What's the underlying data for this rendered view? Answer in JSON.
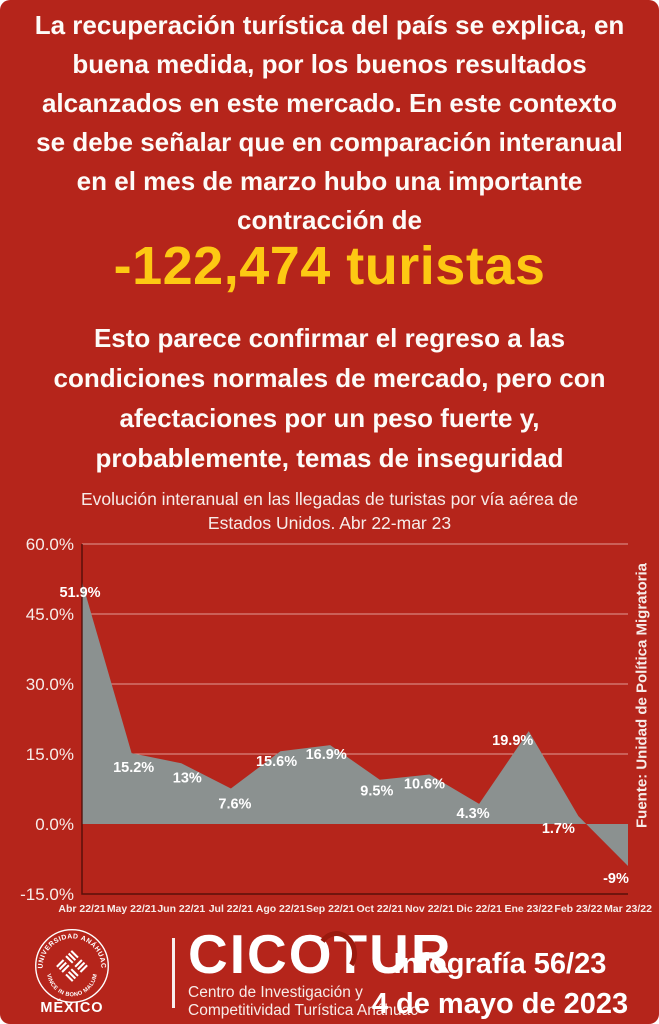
{
  "colors": {
    "background": "#b5251b",
    "headline_yellow": "#fdc913",
    "area_gray": "#8b9190",
    "gridline": "rgba(255,235,230,0.6)",
    "axis": "rgba(74,13,7,0.85)"
  },
  "intro": {
    "text": "La recuperación turística del país se explica, en\nbuena medida, por los buenos resultados\nalcanzados en este mercado. En este contexto\nse debe señalar que en comparación interanual\nen el mes de marzo hubo una importante\ncontracción de"
  },
  "headline": {
    "value": "-122,474 turistas"
  },
  "body_text": {
    "text": "Esto parece confirmar el regreso a las\ncondiciones normales de mercado, pero con\nafectaciones por un peso fuerte y,\nprobablemente, temas de inseguridad"
  },
  "chart_data": {
    "type": "area",
    "title": "Evolución interanual en las llegadas de turistas por vía aérea de\nEstados Unidos. Abr 22-mar 23",
    "categories": [
      "Abr 22/21",
      "May 22/21",
      "Jun 22/21",
      "Jul 22/21",
      "Ago 22/21",
      "Sep 22/21",
      "Oct 22/21",
      "Nov 22/21",
      "Dic 22/21",
      "Ene 23/22",
      "Feb 23/22",
      "Mar 23/22"
    ],
    "values": [
      51.9,
      15.2,
      13,
      7.6,
      15.6,
      16.9,
      9.5,
      10.6,
      4.3,
      19.9,
      1.7,
      -9
    ],
    "point_labels": [
      "51.9%",
      "15.2%",
      "13%",
      "7.6%",
      "15.6%",
      "16.9%",
      "9.5%",
      "10.6%",
      "4.3%",
      "19.9%",
      "1.7%",
      "-9%"
    ],
    "y_ticks": [
      {
        "value": 60,
        "label": "60.0%"
      },
      {
        "value": 45,
        "label": "45.0%"
      },
      {
        "value": 30,
        "label": "30.0%"
      },
      {
        "value": 15,
        "label": "15.0%"
      },
      {
        "value": 0,
        "label": "0.0%"
      },
      {
        "value": -15,
        "label": "-15.0%"
      }
    ],
    "ylim": [
      -15,
      60
    ],
    "baseline": 0,
    "grid": true,
    "legend": "none",
    "source": "Fuente: Unidad de Política Migratoria"
  },
  "footer": {
    "seal": {
      "top_text": "UNIVERSIDAD ANÁHUAC",
      "bottom_text": "VINCE IN BONO MALUM",
      "country": "MÉXICO"
    },
    "org": {
      "name": "CICOTUR",
      "desc": "Centro de Investigación y\nCompetitividad Turística Anáhuac"
    },
    "issue": {
      "number": "Infografía 56/23",
      "date": "4 de mayo de 2023"
    }
  }
}
